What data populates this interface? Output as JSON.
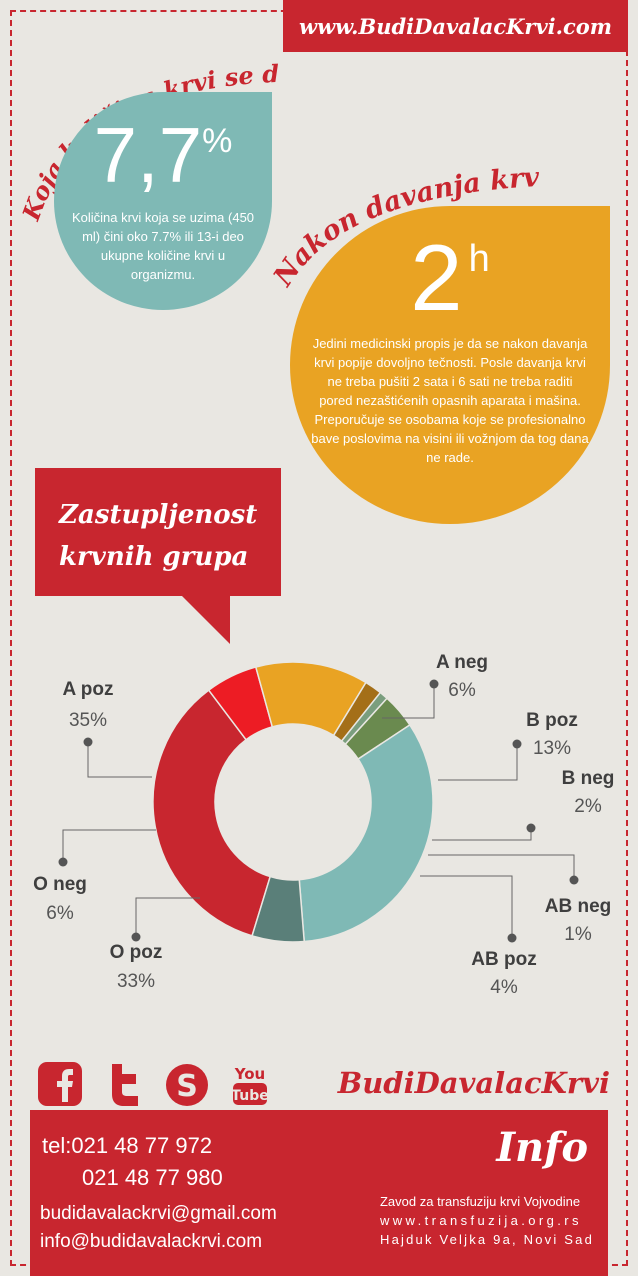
{
  "header": {
    "url": "www.BudiDavalacKrvi.com"
  },
  "section1": {
    "heading": "Koja količina krvi se daje?",
    "big_value": "7,7",
    "big_unit": "%",
    "text": "Količina krvi koja se uzima (450 ml) čini oko 7.7% ili 13-i deo ukupne količine krvi u organizmu."
  },
  "section2": {
    "heading": "Nakon davanja krvi",
    "big_value": "2",
    "big_unit": "h",
    "text": "Jedini medicinski propis je da se nakon davanja krvi popije dovoljno tečnosti. Posle davanja krvi ne treba pušiti 2 sata i 6 sati ne treba raditi pored nezaštićenih opasnih aparata i mašina. Preporučuje se osobama koje se profesionalno bave poslovima na visini ili vožnjom da tog dana ne rade."
  },
  "chart_title": {
    "line1": "Zastupljenost",
    "line2": "krvnih grupa"
  },
  "chart_data": {
    "type": "pie",
    "title": "Zastupljenost krvnih grupa",
    "categories": [
      "A poz",
      "A neg",
      "B poz",
      "B neg",
      "AB neg",
      "AB poz",
      "O poz",
      "O neg"
    ],
    "values": [
      35,
      6,
      13,
      2,
      1,
      4,
      33,
      6
    ],
    "labels": [
      "35%",
      "6%",
      "13%",
      "2%",
      "1%",
      "4%",
      "33%",
      "6%"
    ],
    "colors": [
      "#c8262f",
      "#ed1c24",
      "#e9a323",
      "#a46f18",
      "#7a9e7e",
      "#6a8a4f",
      "#7fb9b5",
      "#5a7f79"
    ]
  },
  "social": {
    "icons": [
      "facebook-icon",
      "twitter-icon",
      "skype-icon",
      "youtube-icon"
    ],
    "youtube_top": "You",
    "youtube_bottom": "Tube"
  },
  "brand": "BudiDavalacKrvi",
  "footer": {
    "tel_label": "tel:",
    "tel1": "021 48 77 972",
    "tel2": "021 48 77 980",
    "email1": "budidavalackrvi@gmail.com",
    "email2": "info@budidavalackrvi.com",
    "info_title": "Info",
    "org_name": "Zavod za transfuziju krvi Vojvodine",
    "org_site": "www.transfuzija.org.rs",
    "org_address": "Hajduk Veljka 9a, Novi Sad"
  }
}
